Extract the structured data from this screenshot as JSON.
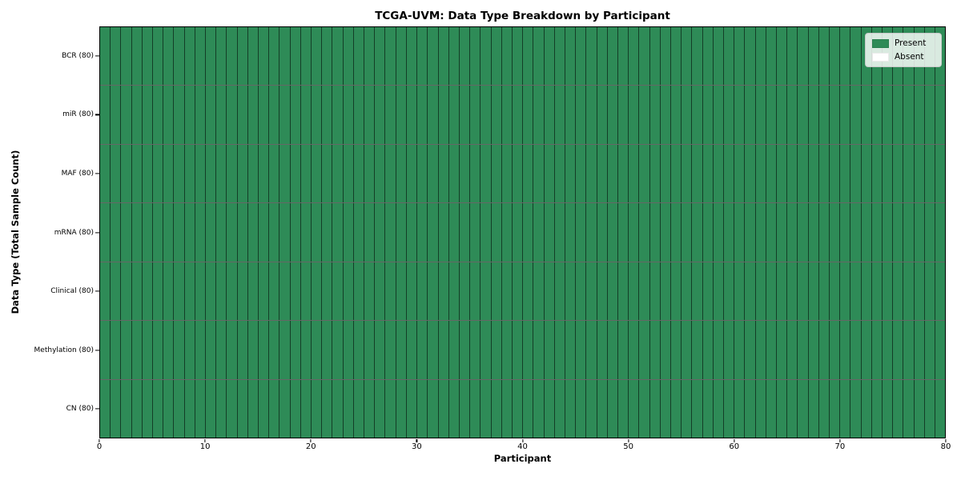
{
  "chart_data": {
    "type": "heatmap",
    "title": "TCGA-UVM: Data Type Breakdown by Participant",
    "xlabel": "Participant",
    "ylabel": "Data Type (Total Sample Count)",
    "xlim": [
      0,
      80
    ],
    "x_ticks": [
      0,
      10,
      20,
      30,
      40,
      50,
      60,
      70,
      80
    ],
    "n_participants": 80,
    "legend_position": "upper right",
    "rows": [
      {
        "label": "BCR (80)",
        "data_type": "BCR",
        "total_samples": 80,
        "present": 80,
        "absent": 0
      },
      {
        "label": "miR (80)",
        "data_type": "miR",
        "total_samples": 80,
        "present": 80,
        "absent": 0
      },
      {
        "label": "MAF (80)",
        "data_type": "MAF",
        "total_samples": 80,
        "present": 80,
        "absent": 0
      },
      {
        "label": "mRNA (80)",
        "data_type": "mRNA",
        "total_samples": 80,
        "present": 80,
        "absent": 0
      },
      {
        "label": "Clinical (80)",
        "data_type": "Clinical",
        "total_samples": 80,
        "present": 80,
        "absent": 0
      },
      {
        "label": "Methylation (80)",
        "data_type": "Methylation",
        "total_samples": 80,
        "present": 80,
        "absent": 0
      },
      {
        "label": "CN (80)",
        "data_type": "CN",
        "total_samples": 80,
        "present": 80,
        "absent": 0
      }
    ],
    "all_cells_present": true,
    "legend": [
      {
        "label": "Present",
        "color": "#2E8B57"
      },
      {
        "label": "Absent",
        "color": "#FFFFFF"
      }
    ],
    "colors": {
      "present": "#2E8B57",
      "absent": "#FFFFFF",
      "background": "#FFFFFF"
    }
  }
}
